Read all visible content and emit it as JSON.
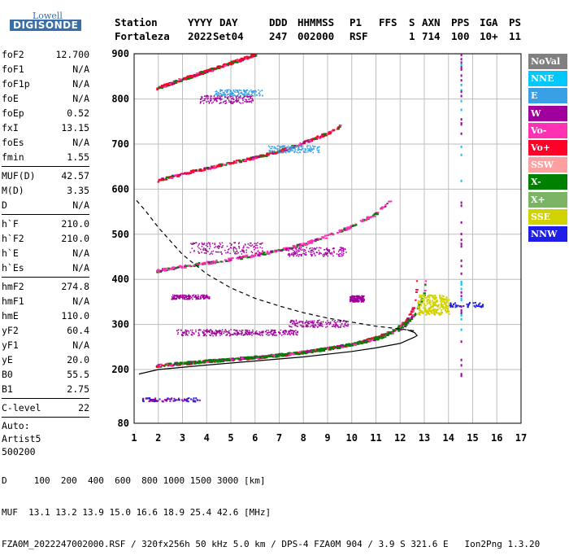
{
  "logo": {
    "top": "Lowell",
    "bottom": "DIGISONDE"
  },
  "header": {
    "labels": [
      "Station",
      "YYYY",
      "DAY",
      "DDD",
      "HHMMSS",
      "P1",
      "FFS",
      "S",
      "AXN",
      "PPS",
      "IGA",
      "PS"
    ],
    "values": [
      "Fortaleza",
      "2022",
      "Set04",
      "247",
      "002000",
      "RSF",
      "1",
      "714",
      "100",
      "10+",
      "11"
    ]
  },
  "parameters": [
    {
      "name": "foF2",
      "value": "12.700"
    },
    {
      "name": "foF1",
      "value": "N/A"
    },
    {
      "name": "foF1p",
      "value": "N/A"
    },
    {
      "name": "foE",
      "value": "N/A"
    },
    {
      "name": "foEp",
      "value": "0.52"
    },
    {
      "name": "fxI",
      "value": "13.15"
    },
    {
      "name": "foEs",
      "value": "N/A"
    },
    {
      "name": "fmin",
      "value": "1.55"
    },
    {
      "sep": true
    },
    {
      "name": "MUF(D)",
      "value": "42.57"
    },
    {
      "name": "M(D)",
      "value": "3.35"
    },
    {
      "name": "D",
      "value": "N/A"
    },
    {
      "sep": true
    },
    {
      "name": "h`F",
      "value": "210.0"
    },
    {
      "name": "h`F2",
      "value": "210.0"
    },
    {
      "name": "h`E",
      "value": "N/A"
    },
    {
      "name": "h`Es",
      "value": "N/A"
    },
    {
      "sep": true
    },
    {
      "name": "hmF2",
      "value": "274.8"
    },
    {
      "name": "hmF1",
      "value": "N/A"
    },
    {
      "name": "hmE",
      "value": "110.0"
    },
    {
      "name": "yF2",
      "value": "60.4"
    },
    {
      "name": "yF1",
      "value": "N/A"
    },
    {
      "name": "yE",
      "value": "20.0"
    },
    {
      "name": "B0",
      "value": "55.5"
    },
    {
      "name": "B1",
      "value": "2.75"
    },
    {
      "sep": true
    },
    {
      "name": "C-level",
      "value": "22"
    },
    {
      "sep": true
    },
    {
      "text": "Auto:"
    },
    {
      "text": "Artist5"
    },
    {
      "text": "500200"
    }
  ],
  "legend": [
    {
      "label": "NoVal",
      "color": "#808080"
    },
    {
      "label": "NNE",
      "color": "#00c8ff"
    },
    {
      "label": "E",
      "color": "#3aa0e6"
    },
    {
      "label": "W",
      "color": "#a0009c"
    },
    {
      "label": "Vo-",
      "color": "#ff32b4"
    },
    {
      "label": "Vo+",
      "color": "#ff0028"
    },
    {
      "label": "SSW",
      "color": "#ffa0a0"
    },
    {
      "label": "X-",
      "color": "#008000"
    },
    {
      "label": "X+",
      "color": "#7ab464"
    },
    {
      "label": "SSE",
      "color": "#d2d200"
    },
    {
      "label": "NNW",
      "color": "#1e1ee6"
    }
  ],
  "footer": {
    "line1": "D     100  200  400  600  800 1000 1500 3000 [km]",
    "line2": "MUF  13.1 13.2 13.9 15.0 16.6 18.9 25.4 42.6 [MHz]",
    "line3": "FZA0M_2022247002000.RSF / 320fx256h 50 kHz 5.0 km / DPS-4 FZA0M 904 / 3.9 S 321.6 E   Ion2Png 1.3.20"
  },
  "chart_data": {
    "type": "scatter",
    "xlim": [
      1,
      17
    ],
    "ylim": [
      80,
      900
    ],
    "xticks": [
      1,
      2,
      3,
      4,
      5,
      6,
      7,
      8,
      9,
      10,
      11,
      12,
      13,
      14,
      15,
      16,
      17
    ],
    "yticks": [
      80,
      200,
      300,
      400,
      500,
      600,
      700,
      800,
      900
    ],
    "grid": true,
    "traces": [
      {
        "name": "F2 O-trace",
        "color": "#ff0028",
        "points": [
          [
            1.9,
            210
          ],
          [
            3,
            215
          ],
          [
            4,
            220
          ],
          [
            5,
            224
          ],
          [
            6,
            228
          ],
          [
            7,
            233
          ],
          [
            8,
            240
          ],
          [
            9,
            248
          ],
          [
            10,
            258
          ],
          [
            11,
            272
          ],
          [
            11.8,
            290
          ],
          [
            12.3,
            315
          ],
          [
            12.6,
            350
          ],
          [
            12.7,
            430
          ]
        ]
      },
      {
        "name": "F2 X-trace",
        "color": "#008000",
        "points": [
          [
            2.5,
            213
          ],
          [
            3.5,
            218
          ],
          [
            5,
            224
          ],
          [
            6.5,
            231
          ],
          [
            8,
            240
          ],
          [
            9.5,
            252
          ],
          [
            11,
            270
          ],
          [
            12,
            292
          ],
          [
            12.6,
            325
          ],
          [
            12.95,
            370
          ],
          [
            13.1,
            420
          ]
        ]
      },
      {
        "name": "2nd hop",
        "color": "#ff32b4",
        "points": [
          [
            1.9,
            420
          ],
          [
            3,
            430
          ],
          [
            4,
            438
          ],
          [
            5,
            446
          ],
          [
            6,
            456
          ],
          [
            7,
            466
          ],
          [
            8,
            480
          ],
          [
            9,
            498
          ],
          [
            10,
            520
          ],
          [
            11,
            548
          ],
          [
            11.6,
            578
          ]
        ]
      },
      {
        "name": "3rd hop",
        "color": "#ff0028",
        "points": [
          [
            1.9,
            620
          ],
          [
            3,
            636
          ],
          [
            4,
            648
          ],
          [
            5,
            660
          ],
          [
            6,
            672
          ],
          [
            7,
            686
          ],
          [
            8,
            705
          ],
          [
            9,
            726
          ],
          [
            9.5,
            742
          ]
        ]
      },
      {
        "name": "4th hop",
        "color": "#ff0028",
        "points": [
          [
            1.9,
            825
          ],
          [
            3,
            846
          ],
          [
            4,
            864
          ],
          [
            5,
            882
          ],
          [
            6,
            900
          ]
        ]
      },
      {
        "name": "profile",
        "color": "#000000",
        "points": [
          [
            1.2,
            190
          ],
          [
            2,
            200
          ],
          [
            4,
            210
          ],
          [
            6,
            219
          ],
          [
            8,
            228
          ],
          [
            10,
            240
          ],
          [
            11,
            248
          ],
          [
            12,
            258
          ],
          [
            12.6,
            272
          ],
          [
            12.7,
            275.4
          ],
          [
            12.6,
            282
          ],
          [
            12.3,
            288
          ]
        ]
      },
      {
        "name": "MUF curve",
        "color": "#000000",
        "points": [
          [
            1.1,
            575
          ],
          [
            1.5,
            550
          ],
          [
            2,
            515
          ],
          [
            3,
            455
          ],
          [
            4,
            412
          ],
          [
            5,
            381
          ],
          [
            6,
            358
          ],
          [
            7,
            341
          ],
          [
            8,
            326
          ],
          [
            9,
            314
          ],
          [
            10,
            305
          ],
          [
            11,
            296
          ],
          [
            12,
            290
          ],
          [
            12.7,
            285
          ]
        ]
      }
    ]
  }
}
